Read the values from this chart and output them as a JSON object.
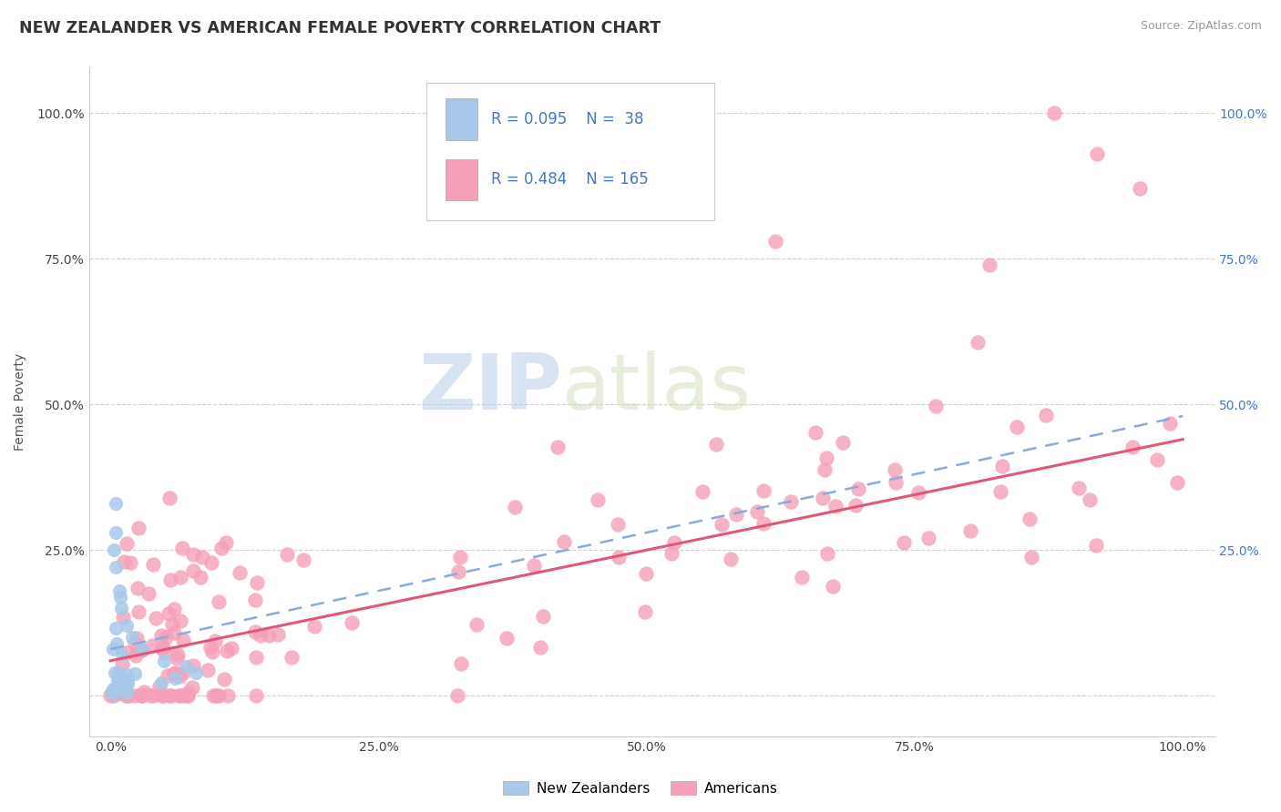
{
  "title": "NEW ZEALANDER VS AMERICAN FEMALE POVERTY CORRELATION CHART",
  "source_text": "Source: ZipAtlas.com",
  "ylabel": "Female Poverty",
  "watermark_zip": "ZIP",
  "watermark_atlas": "atlas",
  "nz_color": "#a8c8ea",
  "us_color": "#f5a0b8",
  "nz_trend_color": "#88aadd",
  "us_trend_color": "#e05878",
  "nz_R": 0.095,
  "nz_N": 38,
  "us_R": 0.484,
  "us_N": 165,
  "legend_label_nz": "New Zealanders",
  "legend_label_us": "Americans",
  "background_color": "#ffffff",
  "grid_color": "#cccccc",
  "right_tick_color": "#4477cc",
  "title_color": "#333333",
  "source_color": "#999999"
}
